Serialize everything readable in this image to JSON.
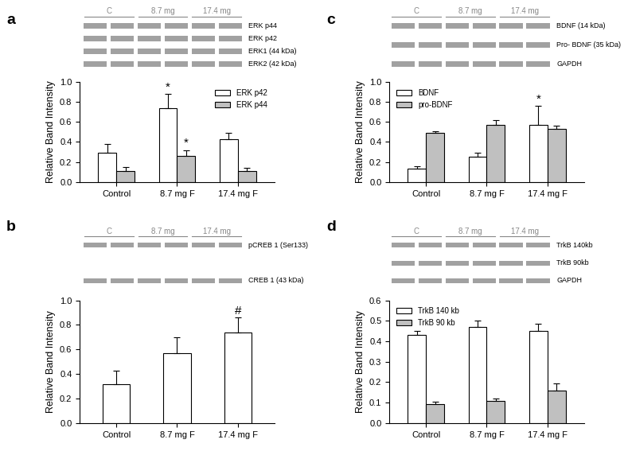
{
  "chart_data": [
    {
      "type": "bar",
      "title": "a",
      "y_label": "Relative Band Intensity",
      "categories": [
        "Control",
        "8.7 mg F",
        "17.4 mg F"
      ],
      "series": [
        {
          "name": "ERK p42",
          "color": "#ffffff",
          "values": [
            0.29,
            0.74,
            0.43
          ],
          "errors": [
            0.09,
            0.14,
            0.06
          ]
        },
        {
          "name": "ERK p44",
          "color": "#c0c0c0",
          "values": [
            0.11,
            0.26,
            0.11
          ],
          "errors": [
            0.04,
            0.06,
            0.03
          ]
        }
      ],
      "ylim": [
        0,
        1.0
      ],
      "yticks": [
        {
          "value": 0,
          "label": "0.0"
        },
        {
          "value": 0.2,
          "label": "0.2"
        },
        {
          "value": 0.4,
          "label": "0.4"
        },
        {
          "value": 0.6,
          "label": "0.6"
        },
        {
          "value": 0.8,
          "label": "0.8"
        },
        {
          "value": 1.0,
          "label": "1.0"
        }
      ],
      "legend": "upper right",
      "annotations": [
        {
          "text": "*",
          "series": "ERK p42",
          "category": "8.7 mg F"
        },
        {
          "text": "*",
          "series": "ERK p44",
          "category": "8.7 mg F"
        }
      ],
      "blot": {
        "lanes": [
          "C",
          "8.7 mg",
          "17.4 mg"
        ],
        "bands": [
          "ERK p44",
          "ERK p42",
          "ERK1 (44 kDa)",
          "ERK2 (42 kDa)"
        ]
      }
    },
    {
      "type": "bar",
      "title": "b",
      "y_label": "Relative Band Intensity",
      "categories": [
        "Control",
        "8.7 mg F",
        "17.4 mg F"
      ],
      "values": [
        0.32,
        0.57,
        0.74
      ],
      "errors": [
        0.11,
        0.13,
        0.12
      ],
      "color": "#ffffff",
      "ylim": [
        0,
        1.0
      ],
      "yticks": [
        {
          "value": 0,
          "label": "0.0"
        },
        {
          "value": 0.2,
          "label": "0.2"
        },
        {
          "value": 0.4,
          "label": "0.4"
        },
        {
          "value": 0.6,
          "label": "0.6"
        },
        {
          "value": 0.8,
          "label": "0.8"
        },
        {
          "value": 1.0,
          "label": "1.0"
        }
      ],
      "annotations": [
        {
          "text": "#",
          "category": "17.4 mg F"
        }
      ],
      "blot": {
        "lanes": [
          "C",
          "8.7 mg",
          "17.4 mg"
        ],
        "bands": [
          "pCREB 1 (Ser133)",
          "CREB 1 (43 kDa)"
        ]
      }
    },
    {
      "type": "bar",
      "title": "c",
      "y_label": "Relative Band Intensity",
      "categories": [
        "Control",
        "8.7 mg F",
        "17.4 mg F"
      ],
      "series": [
        {
          "name": "BDNF",
          "color": "#ffffff",
          "values": [
            0.13,
            0.25,
            0.57
          ],
          "errors": [
            0.03,
            0.04,
            0.19
          ]
        },
        {
          "name": "pro-BDNF",
          "color": "#c0c0c0",
          "values": [
            0.49,
            0.57,
            0.53
          ],
          "errors": [
            0.02,
            0.05,
            0.03
          ]
        }
      ],
      "ylim": [
        0,
        1.0
      ],
      "yticks": [
        {
          "value": 0,
          "label": "0.0"
        },
        {
          "value": 0.2,
          "label": "0.2"
        },
        {
          "value": 0.4,
          "label": "0.4"
        },
        {
          "value": 0.6,
          "label": "0.6"
        },
        {
          "value": 0.8,
          "label": "0.8"
        },
        {
          "value": 1.0,
          "label": "1.0"
        }
      ],
      "legend": "upper left",
      "annotations": [
        {
          "text": "*",
          "series": "BDNF",
          "category": "17.4 mg F"
        }
      ],
      "blot": {
        "lanes": [
          "C",
          "8.7 mg",
          "17.4 mg"
        ],
        "bands": [
          "BDNF (14 kDa)",
          "Pro- BDNF (35 kDa)",
          "GAPDH"
        ]
      }
    },
    {
      "type": "bar",
      "title": "d",
      "y_label": "Relative Band Intensity",
      "categories": [
        "Control",
        "8.7 mg F",
        "17.4 mg F"
      ],
      "series": [
        {
          "name": "TrkB 140 kb",
          "color": "#ffffff",
          "values": [
            0.43,
            0.47,
            0.45
          ],
          "errors": [
            0.02,
            0.03,
            0.035
          ]
        },
        {
          "name": "TrkB 90 kb",
          "color": "#c0c0c0",
          "values": [
            0.095,
            0.11,
            0.16
          ],
          "errors": [
            0.01,
            0.01,
            0.035
          ]
        }
      ],
      "ylim": [
        0,
        0.6
      ],
      "yticks": [
        {
          "value": 0,
          "label": "0.0"
        },
        {
          "value": 0.1,
          "label": "0.1"
        },
        {
          "value": 0.2,
          "label": "0.2"
        },
        {
          "value": 0.3,
          "label": "0.3"
        },
        {
          "value": 0.4,
          "label": "0.4"
        },
        {
          "value": 0.5,
          "label": "0.5"
        },
        {
          "value": 0.6,
          "label": "0.6"
        }
      ],
      "legend": "upper left",
      "blot": {
        "lanes": [
          "C",
          "8.7 mg",
          "17.4 mg"
        ],
        "bands": [
          "TrkB 140kb",
          "TrkB 90kb",
          "GAPDH"
        ]
      }
    }
  ]
}
